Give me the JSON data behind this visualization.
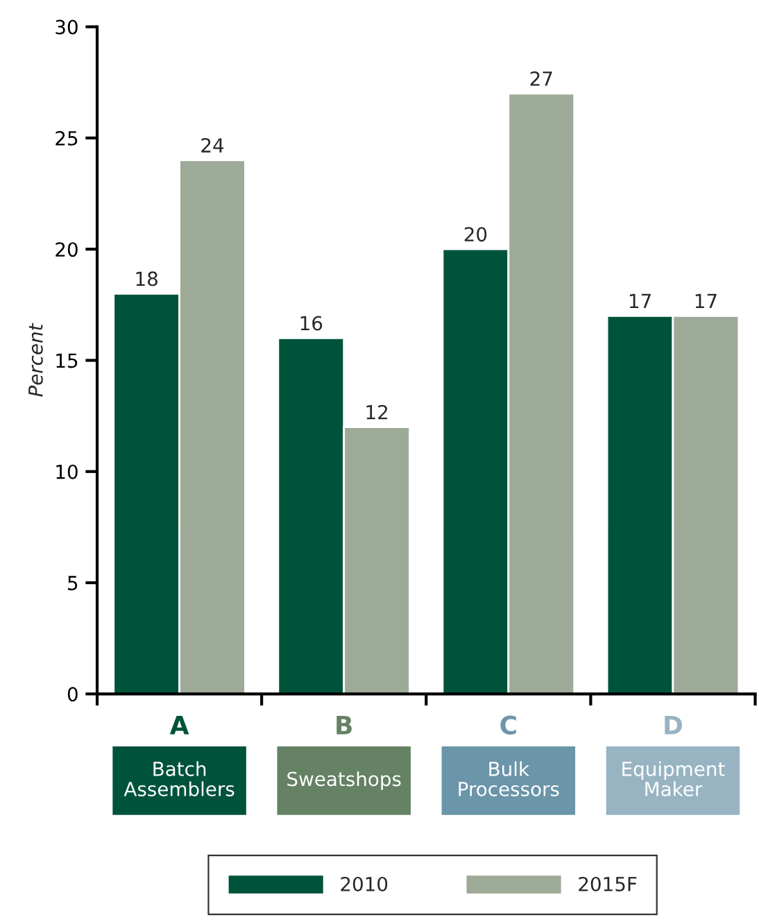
{
  "chart_data": {
    "type": "bar",
    "ylabel": "Percent",
    "categories": [
      "A",
      "B",
      "C",
      "D"
    ],
    "series": [
      {
        "name": "2010",
        "color": "#00533b",
        "values": [
          18,
          16,
          20,
          17
        ]
      },
      {
        "name": "2015F",
        "color": "#9daa97",
        "values": [
          24,
          12,
          27,
          17
        ]
      }
    ],
    "annotations": [
      "Batch\nAssemblers",
      "Sweatshops",
      "Bulk\nProcessors",
      "Equipment\nMaker"
    ],
    "ylim": [
      0,
      30
    ],
    "yticks": [
      0,
      5,
      10,
      15,
      20,
      25,
      30
    ],
    "data_labels": true,
    "grid": false,
    "legend": "bottom"
  }
}
